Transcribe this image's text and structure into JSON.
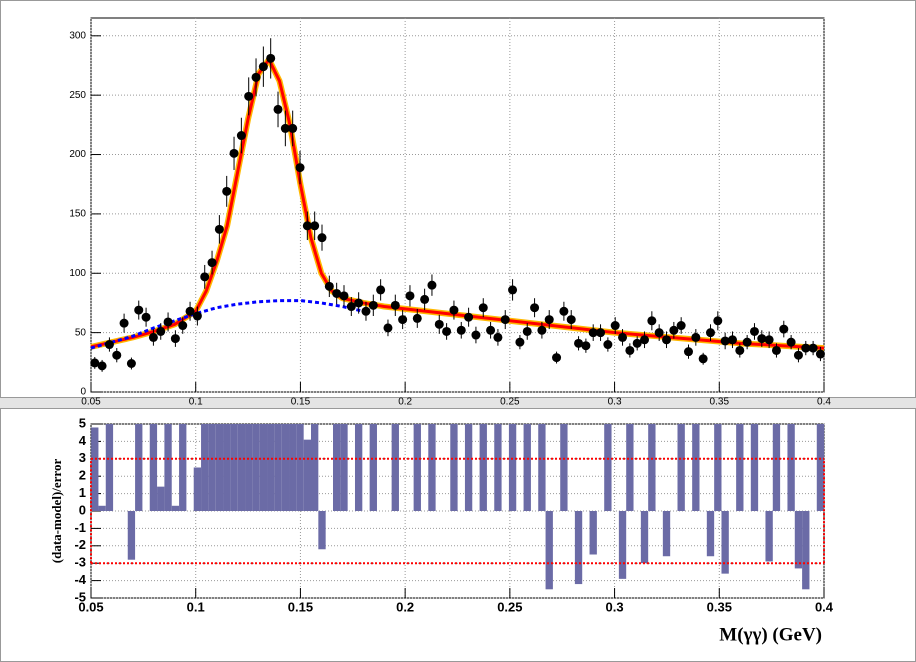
{
  "chart_data": [
    {
      "type": "scatter",
      "x": [
        0.0518,
        0.0553,
        0.0588,
        0.0623,
        0.0658,
        0.0693,
        0.0728,
        0.0763,
        0.0798,
        0.0833,
        0.0868,
        0.0903,
        0.0938,
        0.0973,
        0.1008,
        0.1043,
        0.1078,
        0.1113,
        0.1148,
        0.1183,
        0.1218,
        0.1253,
        0.1288,
        0.1323,
        0.1358,
        0.1393,
        0.1428,
        0.1463,
        0.1498,
        0.1533,
        0.1568,
        0.1603,
        0.1638,
        0.1673,
        0.1708,
        0.1743,
        0.1778,
        0.1813,
        0.1848,
        0.1883,
        0.1918,
        0.1953,
        0.1988,
        0.2023,
        0.2058,
        0.2093,
        0.2128,
        0.2163,
        0.2198,
        0.2233,
        0.2268,
        0.2303,
        0.2338,
        0.2373,
        0.2408,
        0.2443,
        0.2478,
        0.2513,
        0.2548,
        0.2583,
        0.2618,
        0.2653,
        0.2688,
        0.2723,
        0.2758,
        0.2793,
        0.2828,
        0.2863,
        0.2898,
        0.2933,
        0.2968,
        0.3003,
        0.3038,
        0.3073,
        0.3108,
        0.3143,
        0.3178,
        0.3213,
        0.3248,
        0.3283,
        0.3318,
        0.3353,
        0.3388,
        0.3423,
        0.3458,
        0.3493,
        0.3528,
        0.3563,
        0.3598,
        0.3633,
        0.3668,
        0.3703,
        0.3738,
        0.3773,
        0.3808,
        0.3843,
        0.3878,
        0.3913,
        0.3948,
        0.3983
      ],
      "values": [
        24.5,
        22,
        40,
        31,
        58,
        24,
        69,
        63,
        46,
        51,
        59,
        45,
        56,
        68,
        64,
        97,
        109,
        137,
        169,
        201,
        216,
        249,
        265,
        274,
        281,
        238,
        222,
        222,
        189,
        140,
        140,
        130,
        89,
        83,
        81,
        72,
        75,
        68,
        73,
        86,
        54,
        73,
        61,
        81,
        62,
        78,
        90,
        57,
        51,
        69,
        52,
        63,
        48,
        71,
        52,
        46,
        61,
        86,
        42,
        51,
        71,
        52,
        61,
        29,
        68,
        61,
        41,
        39,
        50,
        50,
        40,
        56,
        46,
        35,
        41,
        44,
        60,
        50,
        44,
        52,
        56,
        34,
        46,
        28,
        50,
        60,
        43,
        44,
        35,
        42,
        51,
        45,
        44,
        35,
        53,
        42,
        31,
        37,
        37,
        32
      ],
      "errors": [
        5,
        5,
        6,
        6,
        8,
        5,
        8,
        8,
        7,
        7,
        8,
        7,
        7,
        8,
        8,
        10,
        10,
        12,
        13,
        14,
        15,
        16,
        16,
        17,
        17,
        15,
        15,
        15,
        14,
        12,
        12,
        11,
        9,
        9,
        9,
        8,
        9,
        8,
        9,
        9,
        7,
        9,
        8,
        9,
        8,
        9,
        9,
        8,
        7,
        8,
        7,
        8,
        7,
        8,
        7,
        7,
        8,
        9,
        6,
        7,
        8,
        7,
        8,
        5,
        8,
        8,
        6,
        6,
        7,
        7,
        6,
        7,
        7,
        6,
        6,
        7,
        8,
        7,
        7,
        7,
        7,
        6,
        7,
        5,
        7,
        8,
        7,
        7,
        6,
        6,
        7,
        7,
        7,
        6,
        7,
        6,
        6,
        6,
        6,
        6
      ],
      "color": "#000000",
      "fit": {
        "x": [
          0.05,
          0.06,
          0.07,
          0.08,
          0.09,
          0.1,
          0.105,
          0.11,
          0.115,
          0.12,
          0.125,
          0.13,
          0.135,
          0.14,
          0.145,
          0.15,
          0.155,
          0.16,
          0.165,
          0.17,
          0.18,
          0.19,
          0.2,
          0.22,
          0.24,
          0.26,
          0.28,
          0.3,
          0.32,
          0.34,
          0.36,
          0.38,
          0.4
        ],
        "values": [
          38,
          42,
          46,
          51,
          57,
          68,
          85,
          110,
          140,
          185,
          230,
          268,
          280,
          262,
          225,
          175,
          130,
          100,
          85,
          79,
          75,
          72,
          70,
          66,
          62,
          58,
          54,
          50,
          47,
          44,
          41,
          39,
          37
        ],
        "color": "#ff0000"
      },
      "background": {
        "x": [
          0.05,
          0.06,
          0.07,
          0.08,
          0.09,
          0.1,
          0.11,
          0.12,
          0.13,
          0.14,
          0.15,
          0.16,
          0.17,
          0.18
        ],
        "values": [
          37,
          42,
          47,
          54,
          60,
          66,
          71,
          74,
          76,
          77,
          77,
          75,
          72,
          68
        ],
        "color": "#0000ff"
      },
      "xlim": [
        0.05,
        0.4
      ],
      "ylim": [
        0,
        315
      ],
      "xticks": [
        0.05,
        0.1,
        0.15,
        0.2,
        0.25,
        0.3,
        0.35,
        0.4
      ],
      "yticks": [
        0,
        50,
        100,
        150,
        200,
        250,
        300
      ],
      "grid": true
    },
    {
      "type": "bar",
      "x": [
        0.0518,
        0.0553,
        0.0588,
        0.0623,
        0.0658,
        0.0693,
        0.0728,
        0.0763,
        0.0798,
        0.0833,
        0.0868,
        0.0903,
        0.0938,
        0.0973,
        0.1008,
        0.1043,
        0.1078,
        0.1113,
        0.1148,
        0.1183,
        0.1218,
        0.1253,
        0.1288,
        0.1323,
        0.1358,
        0.1393,
        0.1428,
        0.1463,
        0.1498,
        0.1533,
        0.1568,
        0.1603,
        0.1638,
        0.1673,
        0.1708,
        0.1743,
        0.1778,
        0.1813,
        0.1848,
        0.1883,
        0.1918,
        0.1953,
        0.1988,
        0.2023,
        0.2058,
        0.2093,
        0.2128,
        0.2163,
        0.2198,
        0.2233,
        0.2268,
        0.2303,
        0.2338,
        0.2373,
        0.2408,
        0.2443,
        0.2478,
        0.2513,
        0.2548,
        0.2583,
        0.2618,
        0.2653,
        0.2688,
        0.2723,
        0.2758,
        0.2793,
        0.2828,
        0.2863,
        0.2898,
        0.2933,
        0.2968,
        0.3003,
        0.3038,
        0.3073,
        0.3108,
        0.3143,
        0.3178,
        0.3213,
        0.3248,
        0.3283,
        0.3318,
        0.3353,
        0.3388,
        0.3423,
        0.3458,
        0.3493,
        0.3528,
        0.3563,
        0.3598,
        0.3633,
        0.3668,
        0.3703,
        0.3738,
        0.3773,
        0.3808,
        0.3843,
        0.3878,
        0.3913,
        0.3948,
        0.3983
      ],
      "values": [
        4.8,
        0.3,
        5,
        0,
        0,
        -2.8,
        5,
        0,
        5,
        1.4,
        5,
        0.3,
        5,
        0,
        2.5,
        5,
        5,
        5,
        5,
        5,
        5,
        5,
        5,
        5,
        5,
        5,
        5,
        5,
        5,
        4.1,
        5,
        -2.2,
        0,
        5,
        5,
        0,
        5,
        0,
        5,
        0,
        0,
        5,
        0,
        0,
        5,
        0,
        5,
        0,
        0,
        5,
        0,
        5,
        0,
        5,
        0,
        5,
        0,
        5,
        0,
        5,
        0,
        5,
        -4.5,
        0,
        5,
        0,
        -4.2,
        0,
        -2.5,
        0,
        5,
        0,
        -3.9,
        5,
        0,
        -3,
        5,
        0,
        -2.6,
        0,
        5,
        0,
        5,
        0,
        -2.6,
        5,
        -3.6,
        0,
        5,
        0,
        5,
        0,
        -2.9,
        5,
        0,
        5,
        -3.3,
        -4.5,
        0,
        5
      ],
      "color": "#6b6ba6",
      "hlines": [
        -3,
        3
      ],
      "hline_color": "#ff0000",
      "xlim": [
        0.05,
        0.4
      ],
      "ylim": [
        -5,
        5
      ],
      "xticks": [
        0.05,
        0.1,
        0.15,
        0.2,
        0.25,
        0.3,
        0.35,
        0.4
      ],
      "yticks": [
        -5,
        -4,
        -3,
        -2,
        -1,
        0,
        1,
        2,
        3,
        4,
        5
      ],
      "grid": true,
      "xlabel": "M(γγ) (GeV)",
      "ylabel": "(data-model)/error"
    }
  ]
}
